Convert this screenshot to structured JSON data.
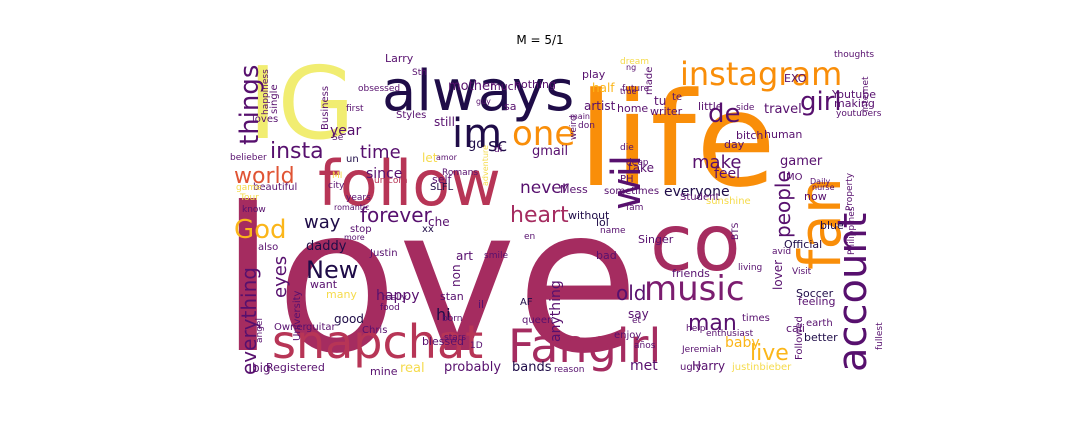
{
  "figure": {
    "title": "M = 5/1"
  },
  "palette": {
    "dark_purple": "#1f0c48",
    "purple": "#57106e",
    "plum": "#7b1d6f",
    "crimson": "#a52c60",
    "red_rose": "#b73556",
    "orange_red": "#e05434",
    "orange": "#f98e09",
    "amber": "#fbb61a",
    "gold": "#f5db4c",
    "pale_yellow": "#f1ed71"
  },
  "words": [
    {
      "text": "love",
      "color": "crimson"
    },
    {
      "text": "life",
      "color": "orange"
    },
    {
      "text": "IG",
      "color": "pale_yellow"
    },
    {
      "text": "follow",
      "color": "red_rose"
    },
    {
      "text": "always",
      "color": "dark_purple"
    },
    {
      "text": "co",
      "color": "crimson"
    },
    {
      "text": "fan",
      "color": "orange"
    },
    {
      "text": "snapchat",
      "color": "red_rose"
    },
    {
      "text": "Fangirl",
      "color": "crimson"
    },
    {
      "text": "account",
      "color": "purple"
    },
    {
      "text": "instagram",
      "color": "orange"
    },
    {
      "text": "im",
      "color": "dark_purple"
    },
    {
      "text": "one",
      "color": "orange"
    },
    {
      "text": "wil",
      "color": "purple"
    },
    {
      "text": "music",
      "color": "plum"
    },
    {
      "text": "things",
      "color": "purple"
    },
    {
      "text": "girl",
      "color": "purple"
    },
    {
      "text": "de",
      "color": "purple"
    },
    {
      "text": "world",
      "color": "orange_red"
    },
    {
      "text": "insta",
      "color": "purple"
    },
    {
      "text": "God",
      "color": "amber"
    },
    {
      "text": "New",
      "color": "dark_purple"
    },
    {
      "text": "heart",
      "color": "crimson"
    },
    {
      "text": "forever",
      "color": "purple"
    },
    {
      "text": "everything",
      "color": "purple"
    },
    {
      "text": "people",
      "color": "purple"
    },
    {
      "text": "live",
      "color": "amber"
    },
    {
      "text": "man",
      "color": "purple"
    },
    {
      "text": "old",
      "color": "purple"
    },
    {
      "text": "eyes",
      "color": "purple"
    },
    {
      "text": "time",
      "color": "purple"
    },
    {
      "text": "never",
      "color": "purple"
    },
    {
      "text": "make",
      "color": "purple"
    },
    {
      "text": "way",
      "color": "dark_purple"
    },
    {
      "text": "sc",
      "color": "dark_purple"
    },
    {
      "text": "year",
      "color": "purple"
    },
    {
      "text": "since",
      "color": "purple"
    },
    {
      "text": "everyone",
      "color": "dark_purple"
    },
    {
      "text": "feel",
      "color": "purple"
    },
    {
      "text": "baby",
      "color": "amber"
    },
    {
      "text": "hi",
      "color": "dark_purple"
    },
    {
      "text": "happy",
      "color": "purple"
    },
    {
      "text": "anything",
      "color": "purple"
    },
    {
      "text": "lover",
      "color": "purple"
    },
    {
      "text": "say",
      "color": "purple"
    },
    {
      "text": "Harry",
      "color": "purple"
    },
    {
      "text": "met",
      "color": "purple"
    },
    {
      "text": "probably",
      "color": "purple"
    },
    {
      "text": "bands",
      "color": "dark_purple"
    },
    {
      "text": "real",
      "color": "gold"
    },
    {
      "text": "mine",
      "color": "purple"
    },
    {
      "text": "Registered",
      "color": "purple"
    },
    {
      "text": "big",
      "color": "purple"
    },
    {
      "text": "good",
      "color": "dark_purple"
    },
    {
      "text": "want",
      "color": "purple"
    },
    {
      "text": "many",
      "color": "gold"
    },
    {
      "text": "daddy",
      "color": "dark_purple"
    },
    {
      "text": "art",
      "color": "purple"
    },
    {
      "text": "go",
      "color": "dark_purple"
    },
    {
      "text": "gmail",
      "color": "purple"
    },
    {
      "text": "let",
      "color": "gold"
    },
    {
      "text": "mother",
      "color": "purple"
    },
    {
      "text": "much",
      "color": "purple"
    },
    {
      "text": "half",
      "color": "amber"
    },
    {
      "text": "Larry",
      "color": "purple"
    },
    {
      "text": "still",
      "color": "purple"
    },
    {
      "text": "artist",
      "color": "purple"
    },
    {
      "text": "sa",
      "color": "purple"
    },
    {
      "text": "tu",
      "color": "purple"
    },
    {
      "text": "home",
      "color": "purple"
    },
    {
      "text": "play",
      "color": "purple"
    },
    {
      "text": "writer",
      "color": "purple"
    },
    {
      "text": "little",
      "color": "purple"
    },
    {
      "text": "travel",
      "color": "purple"
    },
    {
      "text": "human",
      "color": "purple"
    },
    {
      "text": "gamer",
      "color": "purple"
    },
    {
      "text": "Youtube",
      "color": "purple"
    },
    {
      "text": "EXO",
      "color": "purple"
    },
    {
      "text": "making",
      "color": "purple"
    },
    {
      "text": "Soccer",
      "color": "dark_purple"
    },
    {
      "text": "Official",
      "color": "dark_purple"
    },
    {
      "text": "better",
      "color": "dark_purple"
    },
    {
      "text": "friends",
      "color": "purple"
    },
    {
      "text": "Singer",
      "color": "purple"
    },
    {
      "text": "Student",
      "color": "purple"
    },
    {
      "text": "Mess",
      "color": "purple"
    },
    {
      "text": "SLFL",
      "color": "dark_purple"
    },
    {
      "text": "beautiful",
      "color": "purple"
    },
    {
      "text": "know",
      "color": "purple"
    },
    {
      "text": "also",
      "color": "purple"
    },
    {
      "text": "University",
      "color": "purple"
    },
    {
      "text": "single",
      "color": "purple"
    },
    {
      "text": "Business",
      "color": "purple"
    },
    {
      "text": "Styles",
      "color": "purple"
    },
    {
      "text": "happiness",
      "color": "purple"
    },
    {
      "text": "loves",
      "color": "purple"
    },
    {
      "text": "un",
      "color": "dark_purple"
    },
    {
      "text": "unicorn",
      "color": "red_rose"
    },
    {
      "text": "self",
      "color": "purple"
    },
    {
      "text": "lol",
      "color": "dark_purple"
    },
    {
      "text": "without",
      "color": "dark_purple"
    },
    {
      "text": "xx",
      "color": "dark_purple"
    },
    {
      "text": "stan",
      "color": "purple"
    },
    {
      "text": "blessed",
      "color": "purple"
    },
    {
      "text": "queen",
      "color": "purple"
    },
    {
      "text": "AF",
      "color": "dark_purple"
    },
    {
      "text": "bad",
      "color": "purple"
    },
    {
      "text": "nothing",
      "color": "purple"
    },
    {
      "text": "made",
      "color": "purple"
    },
    {
      "text": "te",
      "color": "purple"
    },
    {
      "text": "take",
      "color": "purple"
    },
    {
      "text": "PH",
      "color": "purple"
    },
    {
      "text": "MO",
      "color": "purple"
    },
    {
      "text": "now",
      "color": "purple"
    },
    {
      "text": "blue",
      "color": "dark_purple"
    },
    {
      "text": "gmail2",
      "color": "purple"
    },
    {
      "text": "bitch",
      "color": "purple"
    },
    {
      "text": "day",
      "color": "purple"
    },
    {
      "text": "cali",
      "color": "purple"
    },
    {
      "text": "times",
      "color": "purple"
    },
    {
      "text": "feeling",
      "color": "purple"
    },
    {
      "text": "earth",
      "color": "purple"
    },
    {
      "text": "ugly",
      "color": "purple"
    },
    {
      "text": "enjoy",
      "color": "purple"
    },
    {
      "text": "Jeremiah",
      "color": "purple"
    },
    {
      "text": "justinbieber",
      "color": "gold"
    },
    {
      "text": "Followed",
      "color": "purple"
    },
    {
      "text": "Philippines",
      "color": "purple"
    },
    {
      "text": "Property",
      "color": "purple"
    },
    {
      "text": "thoughts",
      "color": "purple"
    },
    {
      "text": "youtubers",
      "color": "purple"
    },
    {
      "text": "internet",
      "color": "purple"
    },
    {
      "text": "side",
      "color": "purple"
    },
    {
      "text": "main",
      "color": "purple"
    },
    {
      "text": "true",
      "color": "purple"
    },
    {
      "text": "dream",
      "color": "gold"
    },
    {
      "text": "obsessed",
      "color": "purple"
    },
    {
      "text": "guy",
      "color": "purple"
    },
    {
      "text": "weird",
      "color": "purple"
    },
    {
      "text": "first",
      "color": "purple"
    },
    {
      "text": "Se",
      "color": "purple"
    },
    {
      "text": "belieber",
      "color": "purple"
    },
    {
      "text": "MI",
      "color": "gold"
    },
    {
      "text": "city",
      "color": "purple"
    },
    {
      "text": "years",
      "color": "purple"
    },
    {
      "text": "adventure",
      "color": "gold"
    },
    {
      "text": "amor",
      "color": "purple"
    },
    {
      "text": "Romans",
      "color": "purple"
    },
    {
      "text": "die",
      "color": "purple"
    },
    {
      "text": "deep",
      "color": "purple"
    },
    {
      "text": "don",
      "color": "purple"
    },
    {
      "text": "sometimes",
      "color": "purple"
    },
    {
      "text": "sunshine",
      "color": "gold"
    },
    {
      "text": "Daily",
      "color": "purple"
    },
    {
      "text": "nurse",
      "color": "purple"
    },
    {
      "text": "game",
      "color": "gold"
    },
    {
      "text": "Tour",
      "color": "gold"
    },
    {
      "text": "romantic",
      "color": "purple"
    },
    {
      "text": "stop",
      "color": "purple"
    },
    {
      "text": "Justin",
      "color": "purple"
    },
    {
      "text": "smile",
      "color": "purple"
    },
    {
      "text": "non",
      "color": "purple"
    },
    {
      "text": "il",
      "color": "purple"
    },
    {
      "text": "living",
      "color": "purple"
    },
    {
      "text": "avid",
      "color": "purple"
    },
    {
      "text": "BTS",
      "color": "purple"
    },
    {
      "text": "fam",
      "color": "purple"
    },
    {
      "text": "Visit",
      "color": "purple"
    },
    {
      "text": "enthusiast",
      "color": "purple"
    },
    {
      "text": "help",
      "color": "purple"
    },
    {
      "text": "años",
      "color": "purple"
    },
    {
      "text": "et",
      "color": "purple"
    },
    {
      "text": "reason",
      "color": "purple"
    },
    {
      "text": "born",
      "color": "purple"
    },
    {
      "text": "Chris",
      "color": "purple"
    },
    {
      "text": "Owner",
      "color": "purple"
    },
    {
      "text": "guitar",
      "color": "purple"
    },
    {
      "text": "angel",
      "color": "purple"
    },
    {
      "text": "food",
      "color": "purple"
    },
    {
      "text": "really",
      "color": "purple"
    },
    {
      "text": "stars",
      "color": "purple"
    },
    {
      "text": "future",
      "color": "purple"
    },
    {
      "text": "fullest",
      "color": "purple"
    },
    {
      "text": "name",
      "color": "purple"
    },
    {
      "text": "en",
      "color": "purple"
    },
    {
      "text": "di",
      "color": "purple"
    },
    {
      "text": "che",
      "color": "purple"
    },
    {
      "text": "more",
      "color": "purple"
    },
    {
      "text": "1D",
      "color": "purple"
    },
    {
      "text": "Sth",
      "color": "purple"
    },
    {
      "text": "ng",
      "color": "purple"
    }
  ]
}
